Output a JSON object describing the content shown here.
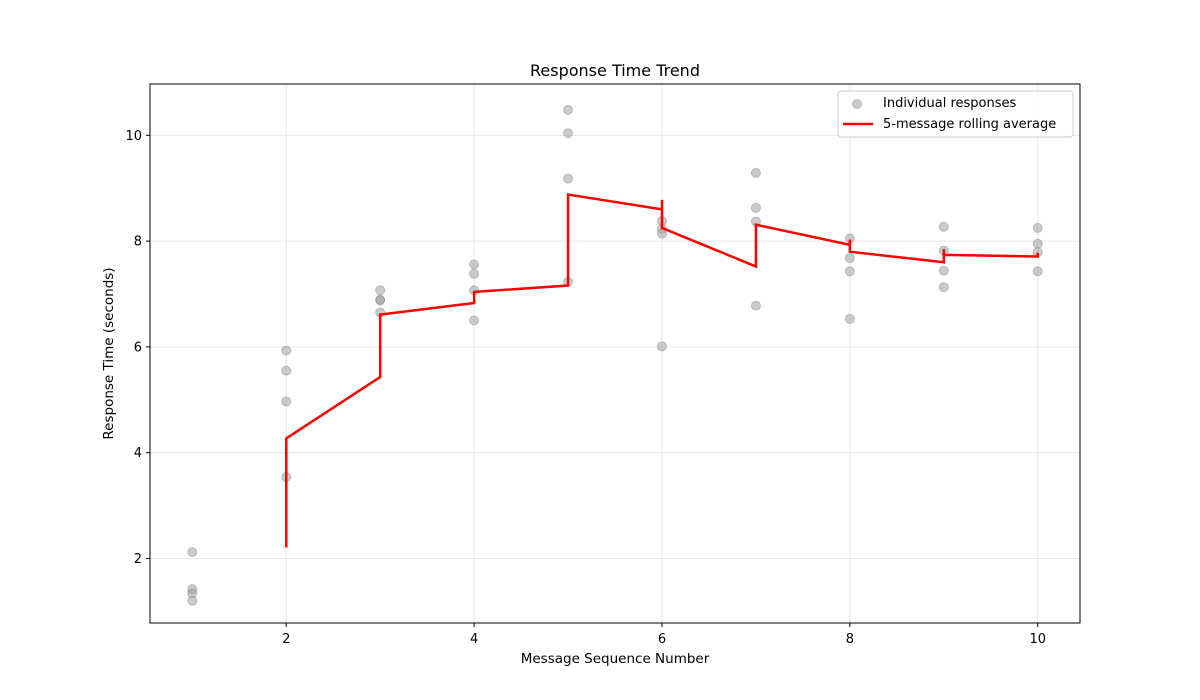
{
  "chart_data": {
    "type": "scatter",
    "title": "Response Time Trend",
    "xlabel": "Message Sequence Number",
    "ylabel": "Response Time (seconds)",
    "xlim": [
      0.55,
      10.45
    ],
    "ylim": [
      0.78,
      10.97
    ],
    "xticks": [
      2,
      4,
      6,
      8,
      10
    ],
    "yticks": [
      2,
      4,
      6,
      8,
      10
    ],
    "grid": true,
    "legend_position": "top-right",
    "colors": {
      "points": "#a0a0a0",
      "average": "#ff0000"
    },
    "series": [
      {
        "name": "Individual responses",
        "kind": "scatter",
        "points": [
          [
            1,
            2.12
          ],
          [
            1,
            1.42
          ],
          [
            1,
            1.34
          ],
          [
            1,
            1.2
          ],
          [
            2,
            5.93
          ],
          [
            2,
            5.55
          ],
          [
            2,
            4.97
          ],
          [
            2,
            3.54
          ],
          [
            3,
            7.07
          ],
          [
            3,
            6.89
          ],
          [
            3,
            6.88
          ],
          [
            3,
            6.65
          ],
          [
            4,
            7.56
          ],
          [
            4,
            7.38
          ],
          [
            4,
            7.07
          ],
          [
            4,
            6.5
          ],
          [
            5,
            10.48
          ],
          [
            5,
            10.04
          ],
          [
            5,
            9.18
          ],
          [
            5,
            7.23
          ],
          [
            6,
            8.38
          ],
          [
            6,
            8.23
          ],
          [
            6,
            8.14
          ],
          [
            6,
            6.01
          ],
          [
            7,
            9.29
          ],
          [
            7,
            8.63
          ],
          [
            7,
            8.37
          ],
          [
            7,
            6.78
          ],
          [
            8,
            8.05
          ],
          [
            8,
            7.68
          ],
          [
            8,
            7.43
          ],
          [
            8,
            6.53
          ],
          [
            9,
            8.27
          ],
          [
            9,
            7.82
          ],
          [
            9,
            7.44
          ],
          [
            9,
            7.13
          ],
          [
            10,
            8.25
          ],
          [
            10,
            7.95
          ],
          [
            10,
            7.79
          ],
          [
            10,
            7.43
          ]
        ]
      },
      {
        "name": "5-message rolling average",
        "kind": "line",
        "points": [
          [
            2,
            2.21
          ],
          [
            2,
            4.27
          ],
          [
            3,
            5.43
          ],
          [
            3,
            6.61
          ],
          [
            4,
            6.83
          ],
          [
            4,
            7.04
          ],
          [
            5,
            7.16
          ],
          [
            5,
            8.88
          ],
          [
            6,
            8.6
          ],
          [
            6,
            8.78
          ],
          [
            6,
            8.25
          ],
          [
            7,
            7.52
          ],
          [
            7,
            8.31
          ],
          [
            8,
            7.93
          ],
          [
            8,
            8.03
          ],
          [
            8,
            7.8
          ],
          [
            9,
            7.6
          ],
          [
            9,
            7.85
          ],
          [
            9,
            7.74
          ],
          [
            10,
            7.71
          ],
          [
            10,
            7.78
          ]
        ]
      }
    ]
  }
}
